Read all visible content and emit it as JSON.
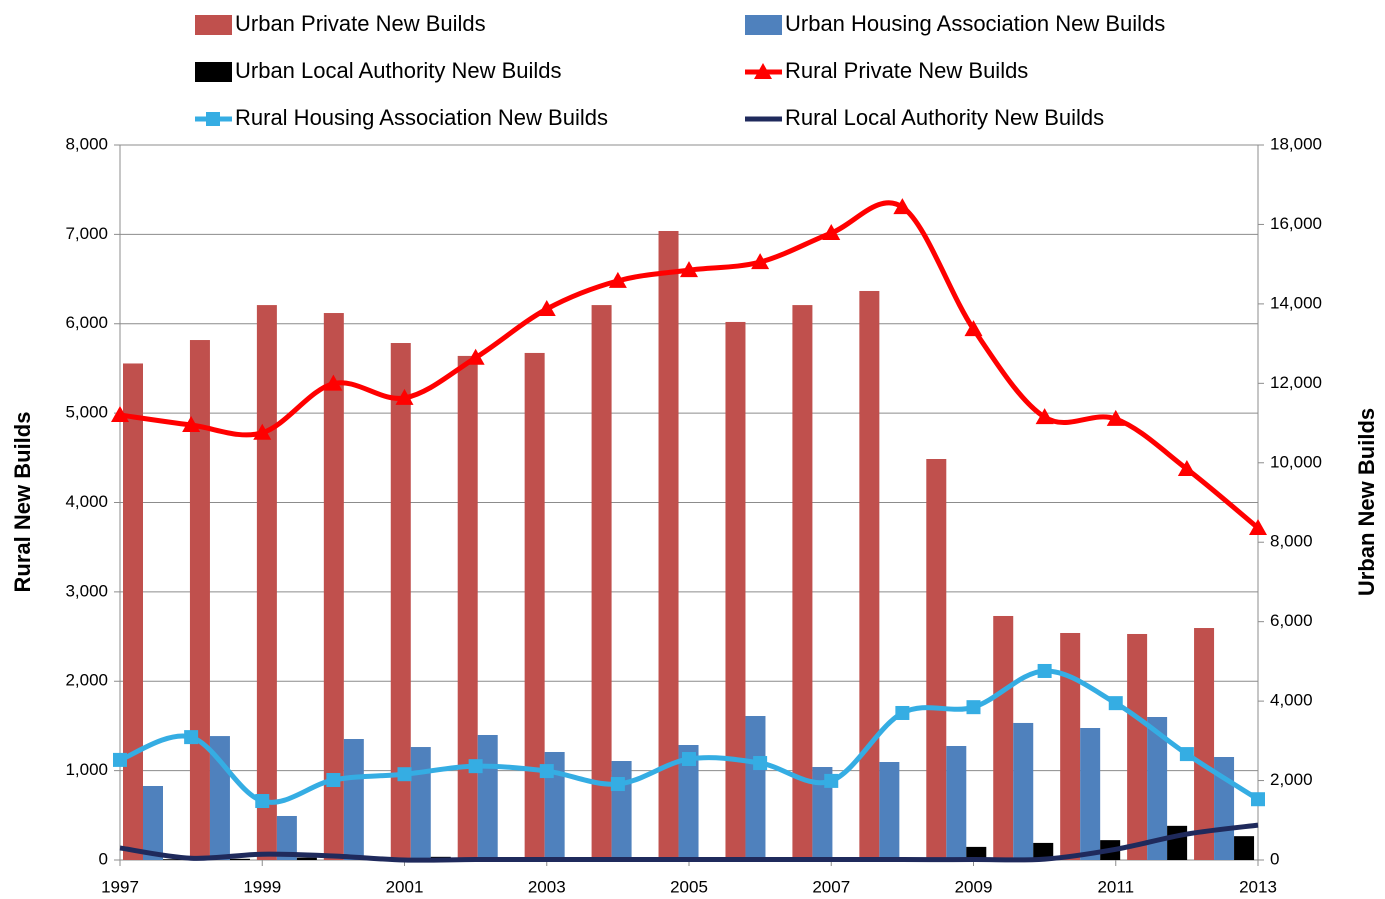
{
  "chart_data": {
    "type": "bar-line",
    "x": [
      1997,
      1998,
      1999,
      2000,
      2001,
      2002,
      2003,
      2004,
      2005,
      2006,
      2007,
      2008,
      2009,
      2010,
      2011,
      2012,
      2013
    ],
    "series": [
      {
        "name": "Urban Private New Builds",
        "kind": "bar",
        "axis": "y2",
        "color": "#c0504d",
        "values": [
          12500,
          13090,
          13970,
          13770,
          13015,
          12690,
          12765,
          13970,
          15835,
          13545,
          13970,
          14325,
          10095,
          6143,
          5715,
          5690,
          5840
        ]
      },
      {
        "name": "Urban  Housing Association New Builds",
        "kind": "bar",
        "axis": "y2",
        "color": "#4f81bd",
        "values": [
          1863,
          3120,
          1108,
          3046,
          2844,
          3147,
          2719,
          2492,
          2895,
          3625,
          2341,
          2467,
          2870,
          3450,
          3323,
          3600,
          2593
        ]
      },
      {
        "name": "Urban Local Authority New Builds",
        "kind": "bar",
        "axis": "y2",
        "color": "#000000",
        "values": [
          20,
          30,
          60,
          60,
          80,
          30,
          60,
          20,
          20,
          20,
          20,
          20,
          330,
          430,
          500,
          860,
          600
        ]
      },
      {
        "name": "Rural Private New Builds",
        "kind": "line",
        "marker": "triangle",
        "color": "#ff0000",
        "values": [
          4979,
          4867,
          4780,
          5330,
          5170,
          5620,
          6165,
          6480,
          6600,
          6690,
          7015,
          7305,
          5940,
          4955,
          4935,
          4375,
          3715
        ]
      },
      {
        "name": "Rural Housing Association New Builds",
        "kind": "line",
        "marker": "square",
        "color": "#35ade3",
        "values": [
          1120,
          1375,
          660,
          895,
          960,
          1050,
          995,
          850,
          1130,
          1085,
          885,
          1645,
          1710,
          2115,
          1755,
          1185,
          680
        ]
      },
      {
        "name": "Rural Local Authority New Builds",
        "kind": "line",
        "marker": "none",
        "color": "#1f2a5c",
        "values": [
          135,
          20,
          65,
          45,
          0,
          5,
          5,
          5,
          5,
          5,
          5,
          5,
          5,
          10,
          120,
          290,
          390
        ]
      }
    ],
    "ylabel": "Rural New Builds",
    "y2label": "Urban New Builds",
    "xlim": [
      1997,
      2013
    ],
    "xticks": [
      1997,
      1999,
      2001,
      2003,
      2005,
      2007,
      2009,
      2011,
      2013
    ],
    "ylim": [
      0,
      8000
    ],
    "yticks": [
      0,
      {
        "value": 1000,
        "label": "1,000"
      },
      {
        "value": 2000,
        "label": "2,000"
      },
      {
        "value": 3000,
        "label": "3,000"
      },
      {
        "value": 4000,
        "label": "4,000"
      },
      {
        "value": 5000,
        "label": "5,000"
      },
      {
        "value": 6000,
        "label": "6,000"
      },
      {
        "value": 7000,
        "label": "7,000"
      },
      {
        "value": 8000,
        "label": "8,000"
      }
    ],
    "y2lim": [
      0,
      18000
    ],
    "y2ticks": [
      0,
      {
        "value": 2000,
        "label": "2,000"
      },
      {
        "value": 4000,
        "label": "4,000"
      },
      {
        "value": 6000,
        "label": "6,000"
      },
      {
        "value": 8000,
        "label": "8,000"
      },
      {
        "value": 10000,
        "label": "10,000"
      },
      {
        "value": 12000,
        "label": "12,000"
      },
      {
        "value": 14000,
        "label": "14,000"
      },
      {
        "value": 16000,
        "label": "16,000"
      },
      {
        "value": 18000,
        "label": "18,000"
      }
    ],
    "grid": true
  }
}
